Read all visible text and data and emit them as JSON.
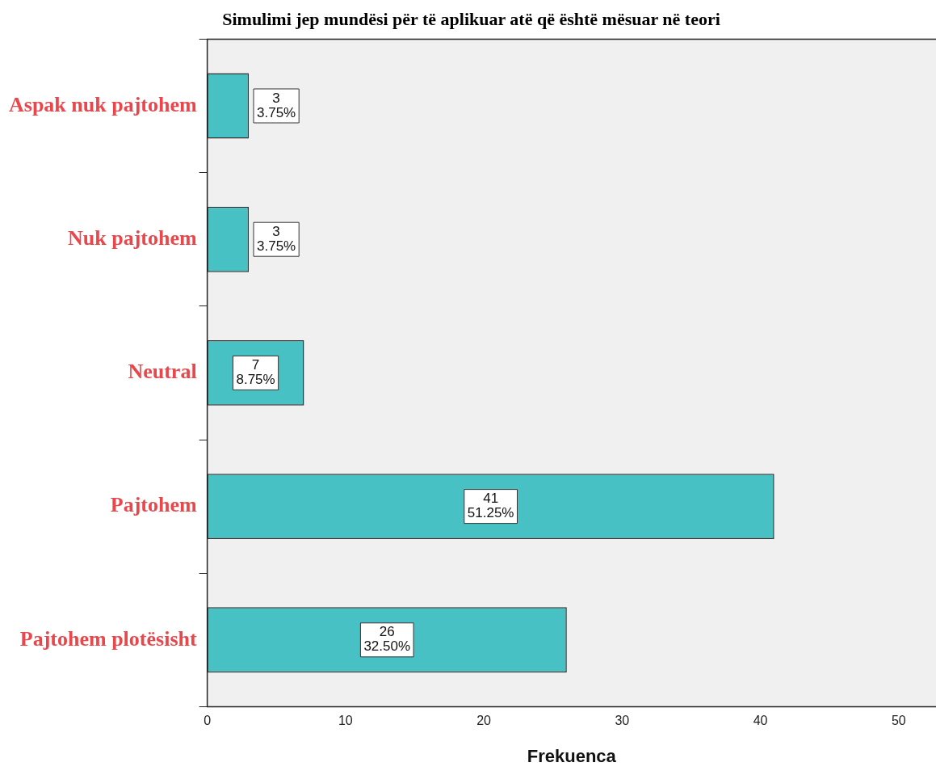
{
  "chart_data": {
    "type": "bar",
    "orientation": "horizontal",
    "title": "Simulimi jep mundësi për të aplikuar atë që është mësuar në teori",
    "xlabel": "Frekuenca",
    "categories": [
      "Aspak nuk pajtohem",
      "Nuk pajtohem",
      "Neutral",
      "Pajtohem",
      "Pajtohem plotësisht"
    ],
    "values": [
      3,
      3,
      7,
      41,
      26
    ],
    "color": "#48c1c4",
    "value_labels": [
      "3\n3.75%",
      "3\n3.75%",
      "7\n8.75%",
      "41\n51.25%",
      "26\n32.50%"
    ],
    "xlim": [
      0,
      52.7
    ],
    "xticks": [
      0,
      10,
      20,
      30,
      40,
      50
    ],
    "grid": false,
    "legend": false
  }
}
